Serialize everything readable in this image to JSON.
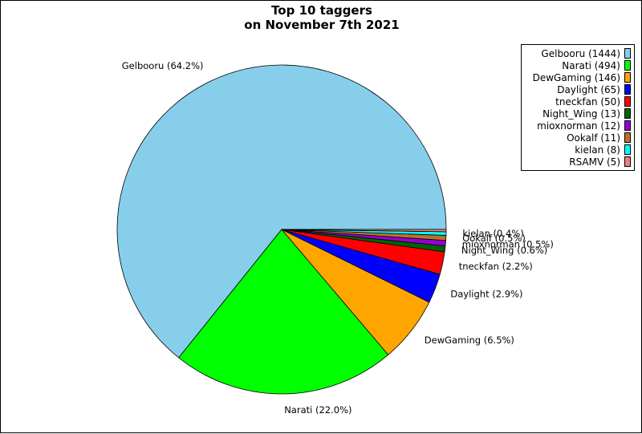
{
  "chart_data": {
    "type": "pie",
    "title_lines": [
      "Top 10 taggers",
      "on November 7th 2021"
    ],
    "slices": [
      {
        "name": "Gelbooru",
        "count": 1444,
        "percent": 64.2,
        "color": "#87CEEB",
        "label": "Gelbooru (64.2%)",
        "legend": "Gelbooru (1444)"
      },
      {
        "name": "Narati",
        "count": 494,
        "percent": 22.0,
        "color": "#00FF00",
        "label": "Narati (22.0%)",
        "legend": "Narati (494)"
      },
      {
        "name": "DewGaming",
        "count": 146,
        "percent": 6.5,
        "color": "#FFA500",
        "label": "DewGaming (6.5%)",
        "legend": "DewGaming (146)"
      },
      {
        "name": "Daylight",
        "count": 65,
        "percent": 2.9,
        "color": "#0000FF",
        "label": "Daylight (2.9%)",
        "legend": "Daylight (65)"
      },
      {
        "name": "tneckfan",
        "count": 50,
        "percent": 2.2,
        "color": "#FF0000",
        "label": "tneckfan (2.2%)",
        "legend": "tneckfan (50)"
      },
      {
        "name": "Night_Wing",
        "count": 13,
        "percent": 0.6,
        "color": "#006400",
        "label": "Night_Wing (0.6%)",
        "legend": "Night_Wing (13)"
      },
      {
        "name": "mioxnorman",
        "count": 12,
        "percent": 0.5,
        "color": "#9400D3",
        "label": "mioxnorman (0.5%)",
        "legend": "mioxnorman (12)"
      },
      {
        "name": "Ookalf",
        "count": 11,
        "percent": 0.5,
        "color": "#B8732E",
        "label": "Ookalf (0.5%)",
        "legend": "Ookalf (11)"
      },
      {
        "name": "kielan",
        "count": 8,
        "percent": 0.4,
        "color": "#00FFFF",
        "label": "kielan (0.4%)",
        "legend": "kielan (8)"
      },
      {
        "name": "RSAMV",
        "count": 5,
        "percent": 0.2,
        "color": "#F08080",
        "label": "",
        "legend": "RSAMV (5)"
      }
    ],
    "legend_position": "top-right"
  }
}
